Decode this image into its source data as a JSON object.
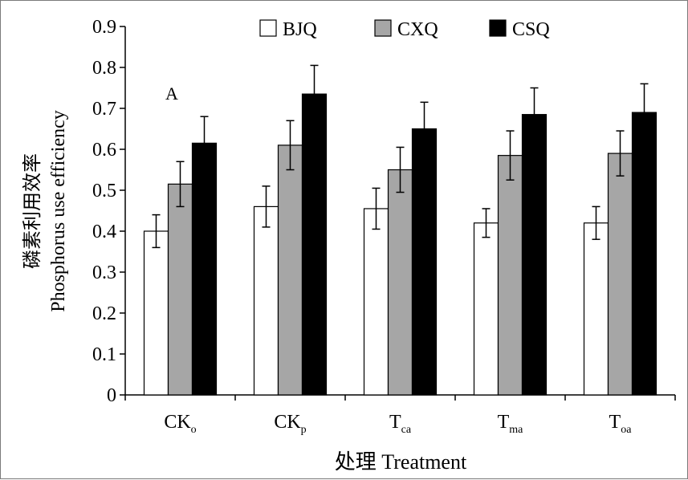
{
  "chart_data": {
    "type": "bar",
    "panel_label": "A",
    "categories": [
      {
        "base": "CK",
        "sub": "o"
      },
      {
        "base": "CK",
        "sub": "p"
      },
      {
        "base": "T",
        "sub": "ca"
      },
      {
        "base": "T",
        "sub": "ma"
      },
      {
        "base": "T",
        "sub": "oa"
      }
    ],
    "series": [
      {
        "name": "BJQ",
        "color": "#ffffff",
        "values": [
          0.4,
          0.46,
          0.455,
          0.42,
          0.42
        ],
        "errors": [
          0.04,
          0.05,
          0.05,
          0.035,
          0.04
        ]
      },
      {
        "name": "CXQ",
        "color": "#a6a6a6",
        "values": [
          0.515,
          0.61,
          0.55,
          0.585,
          0.59
        ],
        "errors": [
          0.055,
          0.06,
          0.055,
          0.06,
          0.055
        ]
      },
      {
        "name": "CSQ",
        "color": "#000000",
        "values": [
          0.615,
          0.735,
          0.65,
          0.685,
          0.69
        ],
        "errors": [
          0.065,
          0.07,
          0.065,
          0.065,
          0.07
        ]
      }
    ],
    "ylim": [
      0,
      0.9
    ],
    "yticks": [
      "0",
      "0.1",
      "0.2",
      "0.3",
      "0.4",
      "0.5",
      "0.6",
      "0.7",
      "0.8",
      "0.9"
    ],
    "ylabel_cn": "磷素利用效率",
    "ylabel_en": "Phosphorus use efficiency",
    "xlabel": "处理 Treatment",
    "legend_position": "top",
    "grid": false
  }
}
